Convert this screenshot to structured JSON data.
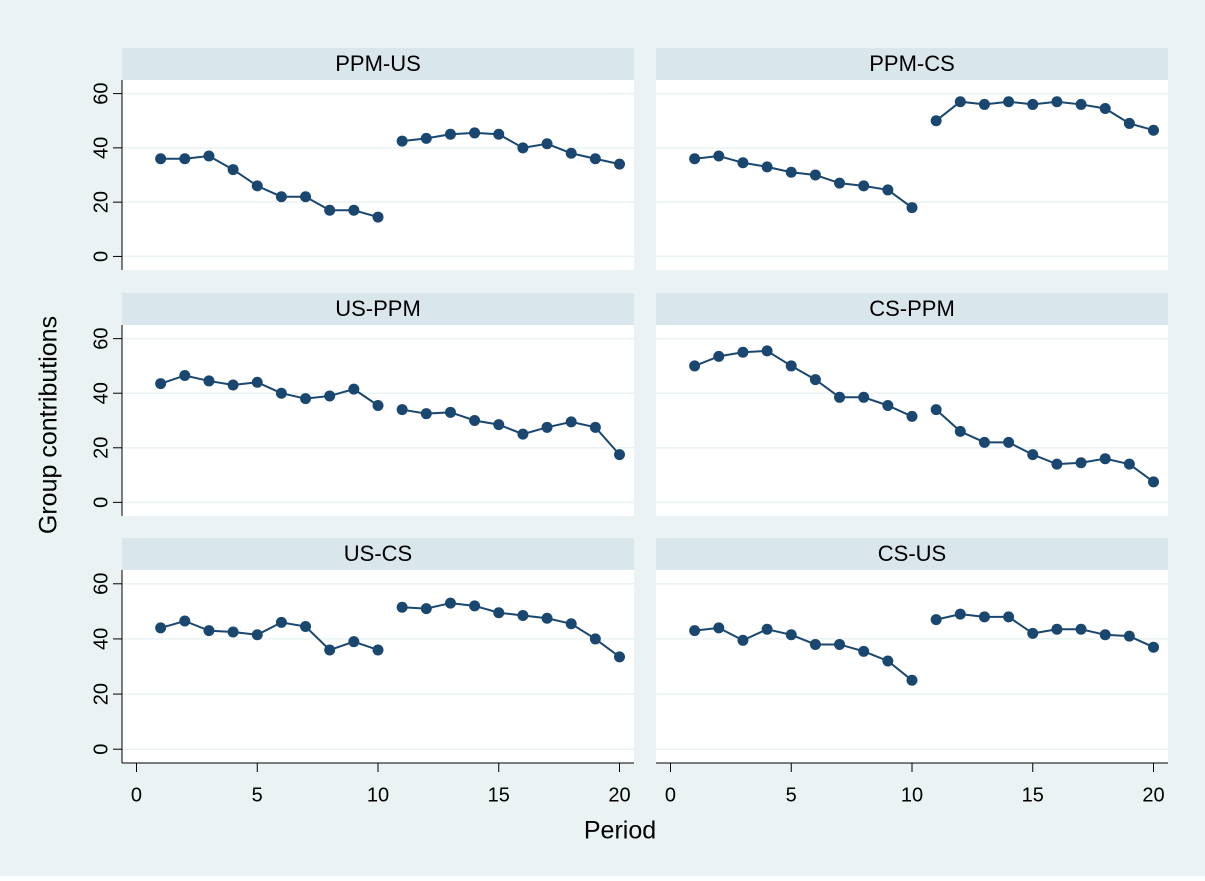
{
  "chart_data": {
    "type": "line",
    "xlabel": "Period",
    "ylabel": "Group contributions",
    "color": "#1a476f",
    "grid": true,
    "xlim": [
      -0.6,
      20.6
    ],
    "xticks": [
      0,
      5,
      10,
      15,
      20
    ],
    "ylim": [
      -5,
      65
    ],
    "yticks": [
      0,
      20,
      40,
      60
    ],
    "panels": [
      {
        "title": "PPM-US",
        "series": [
          {
            "x": [
              1,
              2,
              3,
              4,
              5,
              6,
              7,
              8,
              9,
              10
            ],
            "values": [
              36,
              36,
              37,
              32,
              26,
              22,
              22,
              17,
              17,
              14.5
            ]
          },
          {
            "x": [
              11,
              12,
              13,
              14,
              15,
              16,
              17,
              18,
              19,
              20
            ],
            "values": [
              42.5,
              43.5,
              45,
              45.5,
              45,
              40,
              41.5,
              38,
              36,
              34
            ]
          }
        ]
      },
      {
        "title": "PPM-CS",
        "series": [
          {
            "x": [
              1,
              2,
              3,
              4,
              5,
              6,
              7,
              8,
              9,
              10
            ],
            "values": [
              36,
              37,
              34.5,
              33,
              31,
              30,
              27,
              26,
              24.5,
              18
            ]
          },
          {
            "x": [
              11,
              12,
              13,
              14,
              15,
              16,
              17,
              18,
              19,
              20
            ],
            "values": [
              50,
              57,
              56,
              57,
              56,
              57,
              56,
              54.5,
              49,
              46.5
            ]
          }
        ]
      },
      {
        "title": "US-PPM",
        "series": [
          {
            "x": [
              1,
              2,
              3,
              4,
              5,
              6,
              7,
              8,
              9,
              10
            ],
            "values": [
              43.5,
              46.5,
              44.5,
              43,
              44,
              40,
              38,
              39,
              41.5,
              35.5
            ]
          },
          {
            "x": [
              11,
              12,
              13,
              14,
              15,
              16,
              17,
              18,
              19,
              20
            ],
            "values": [
              34,
              32.5,
              33,
              30,
              28.5,
              25,
              27.5,
              29.5,
              27.5,
              17.5
            ]
          }
        ]
      },
      {
        "title": "CS-PPM",
        "series": [
          {
            "x": [
              1,
              2,
              3,
              4,
              5,
              6,
              7,
              8,
              9,
              10
            ],
            "values": [
              50,
              53.5,
              55,
              55.5,
              50,
              45,
              38.5,
              38.5,
              35.5,
              31.5
            ]
          },
          {
            "x": [
              11,
              12,
              13,
              14,
              15,
              16,
              17,
              18,
              19,
              20
            ],
            "values": [
              34,
              26,
              22,
              22,
              17.5,
              14,
              14.5,
              16,
              14,
              7.5
            ]
          }
        ]
      },
      {
        "title": "US-CS",
        "series": [
          {
            "x": [
              1,
              2,
              3,
              4,
              5,
              6,
              7,
              8,
              9,
              10
            ],
            "values": [
              44,
              46.5,
              43,
              42.5,
              41.5,
              46,
              44.5,
              36,
              39,
              36
            ]
          },
          {
            "x": [
              11,
              12,
              13,
              14,
              15,
              16,
              17,
              18,
              19,
              20
            ],
            "values": [
              51.5,
              51,
              53,
              52,
              49.5,
              48.5,
              47.5,
              45.5,
              40,
              33.5
            ]
          }
        ]
      },
      {
        "title": "CS-US",
        "series": [
          {
            "x": [
              1,
              2,
              3,
              4,
              5,
              6,
              7,
              8,
              9,
              10
            ],
            "values": [
              43,
              44,
              39.5,
              43.5,
              41.5,
              38,
              38,
              35.5,
              32,
              25
            ]
          },
          {
            "x": [
              11,
              12,
              13,
              14,
              15,
              16,
              17,
              18,
              19,
              20
            ],
            "values": [
              47,
              49,
              48,
              48,
              42,
              43.5,
              43.5,
              41.5,
              41,
              37
            ]
          }
        ]
      }
    ]
  }
}
